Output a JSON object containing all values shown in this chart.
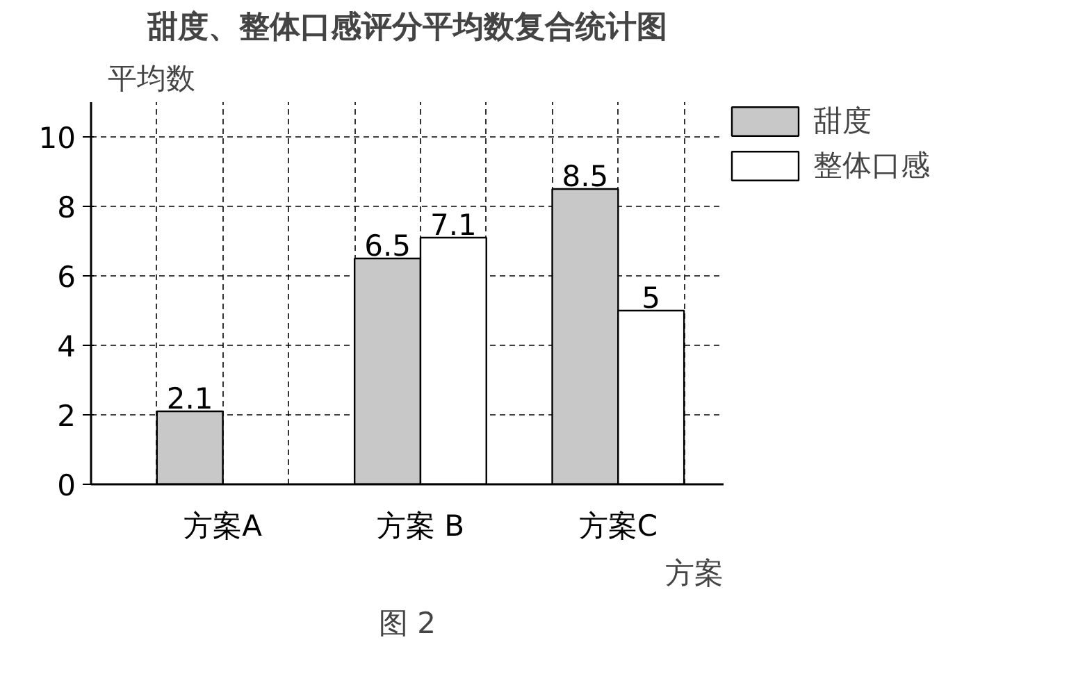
{
  "chart_data": {
    "type": "bar",
    "title": "甜度、整体口感评分平均数复合统计图",
    "xlabel": "方案",
    "ylabel": "平均数",
    "categories": [
      "方案A",
      "方案 B",
      "方案C"
    ],
    "series": [
      {
        "name": "甜度",
        "color": "#c8c8c8",
        "values": [
          2.1,
          6.5,
          8.5
        ]
      },
      {
        "name": "整体口感",
        "color": "#ffffff",
        "values": [
          null,
          7.1,
          5
        ]
      }
    ],
    "ylim": [
      0,
      11
    ],
    "yticks": [
      0,
      2,
      4,
      6,
      8,
      10
    ],
    "grid": true,
    "legend": "top right",
    "data_labels": true,
    "annotations": [
      "图 2"
    ]
  }
}
